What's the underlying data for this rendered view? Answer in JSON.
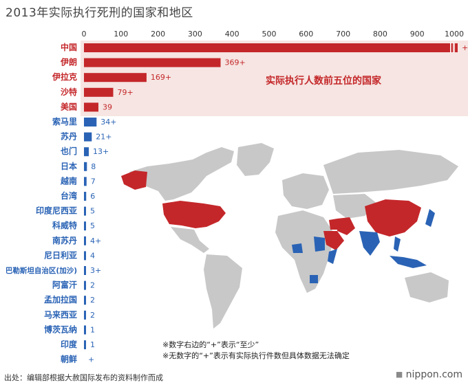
{
  "title": "2013年实际执行死刑的国家和地区",
  "source": "出处：编辑部根据大赦国际发布的资料制作而成",
  "brand": "nippon.com",
  "notes": [
    "※数字右边的“+”表示“至少”",
    "※无数字的“+”表示有实际执行件数但具体数据无法确定"
  ],
  "colors": {
    "top5": "#c4272a",
    "others": "#2a63b5",
    "highlight_bg": "#f6e5e2",
    "map_land": "#c8c8c8"
  },
  "chart_data": {
    "type": "bar",
    "orientation": "horizontal",
    "title": "2013年实际执行死刑的国家和地区",
    "annotation": "实际执行人数前五位的国家",
    "xlim": [
      0,
      1000
    ],
    "xticks": [
      "0",
      "100",
      "200",
      "300",
      "400",
      "500",
      "600",
      "700",
      "800",
      "900",
      "1000"
    ],
    "categories": [
      "中国",
      "伊朗",
      "伊拉克",
      "沙特",
      "美国",
      "索马里",
      "苏丹",
      "也门",
      "日本",
      "越南",
      "台湾",
      "印度尼西亚",
      "科威特",
      "南苏丹",
      "尼日利亚",
      "巴勒斯坦自治区(加沙)",
      "阿富汗",
      "孟加拉国",
      "马来西亚",
      "博茨瓦纳",
      "印度",
      "朝鲜"
    ],
    "values": [
      1000,
      369,
      169,
      79,
      39,
      34,
      21,
      13,
      8,
      7,
      6,
      5,
      5,
      4,
      4,
      3,
      2,
      2,
      2,
      1,
      1,
      null
    ],
    "value_labels": [
      "+",
      "369+",
      "169+",
      "79+",
      "39",
      "34+",
      "21+",
      "13+",
      "8",
      "7",
      "6",
      "5",
      "5",
      "4+",
      "4",
      "3+",
      "2",
      "2",
      "2",
      "1",
      "1",
      "+"
    ],
    "top5_count": 5,
    "truncated_bars": [
      0
    ]
  },
  "map": {
    "highlighted_red": [
      "China",
      "Iran",
      "Iraq",
      "Saudi Arabia",
      "United States"
    ],
    "highlighted_blue": [
      "Somalia",
      "Sudan",
      "Yemen",
      "Japan",
      "Vietnam",
      "Taiwan",
      "Indonesia",
      "Kuwait",
      "South Sudan",
      "Nigeria",
      "Gaza",
      "Afghanistan",
      "Bangladesh",
      "Malaysia",
      "Botswana",
      "India",
      "North Korea"
    ]
  }
}
